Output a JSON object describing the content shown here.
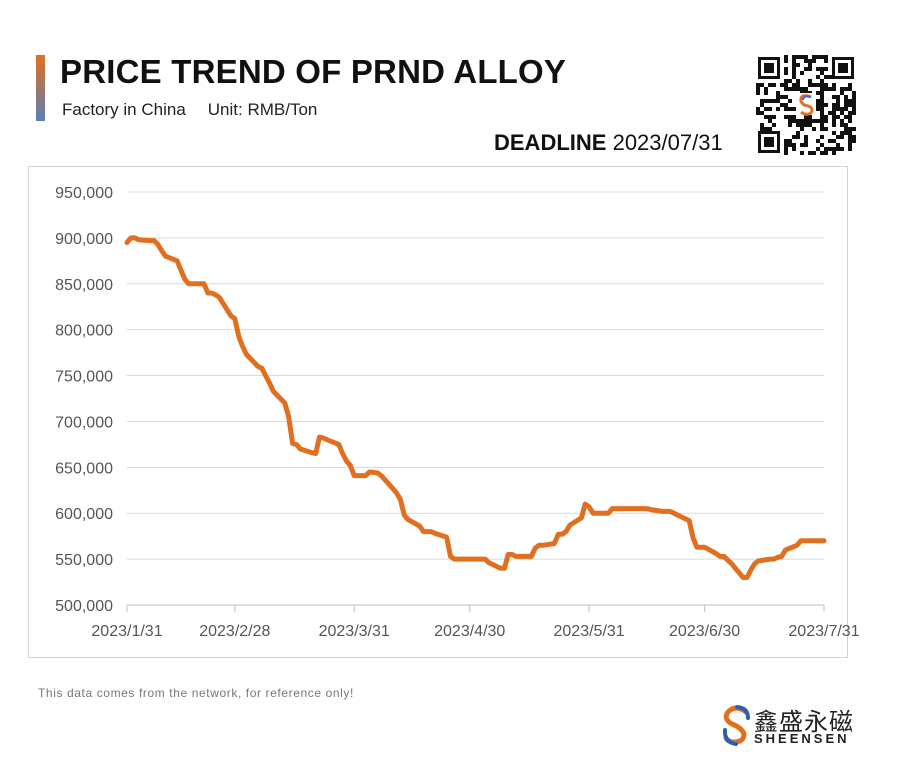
{
  "header": {
    "title": "PRICE TREND OF PRND ALLOY",
    "factory": "Factory in China",
    "unit": "Unit: RMB/Ton",
    "deadline_label": "DEADLINE",
    "deadline_date": "2023/07/31"
  },
  "footer": {
    "note": "This data comes from the network, for reference only!"
  },
  "logo": {
    "cn": "鑫盛永磁",
    "en": "SHEENSEN"
  },
  "colors": {
    "line": "#e07020",
    "accent_top": "#e07020",
    "accent_bottom": "#5b7fb5",
    "grid": "#d9d9d9"
  },
  "icons": [
    "qr-code-icon",
    "sheensen-s-logo-icon"
  ],
  "chart_data": {
    "type": "line",
    "title": "PRICE TREND OF PRND ALLOY",
    "xlabel": "",
    "ylabel": "",
    "ylim": [
      500000,
      950000
    ],
    "yticks": [
      "500,000",
      "550,000",
      "600,000",
      "650,000",
      "700,000",
      "750,000",
      "800,000",
      "850,000",
      "900,000",
      "950,000"
    ],
    "xlim": [
      "2023/1/31",
      "2023/7/31"
    ],
    "xticks": [
      "2023/1/31",
      "2023/2/28",
      "2023/3/31",
      "2023/4/30",
      "2023/5/31",
      "2023/6/30",
      "2023/7/31"
    ],
    "grid": true,
    "legend": "none",
    "series": [
      {
        "x": [
          "2023/1/31",
          "2023/2/1",
          "2023/2/2",
          "2023/2/3",
          "2023/2/6",
          "2023/2/7",
          "2023/2/8",
          "2023/2/9",
          "2023/2/10",
          "2023/2/13",
          "2023/2/14",
          "2023/2/15",
          "2023/2/16",
          "2023/2/17",
          "2023/2/20",
          "2023/2/21",
          "2023/2/22",
          "2023/2/23",
          "2023/2/24",
          "2023/2/27",
          "2023/2/28",
          "2023/3/1",
          "2023/3/2",
          "2023/3/3",
          "2023/3/6",
          "2023/3/7",
          "2023/3/8",
          "2023/3/9",
          "2023/3/10",
          "2023/3/13",
          "2023/3/14",
          "2023/3/15",
          "2023/3/16",
          "2023/3/17",
          "2023/3/20",
          "2023/3/21",
          "2023/3/22",
          "2023/3/23",
          "2023/3/24",
          "2023/3/27",
          "2023/3/28",
          "2023/3/29",
          "2023/3/30",
          "2023/3/31",
          "2023/4/3",
          "2023/4/4",
          "2023/4/6",
          "2023/4/7",
          "2023/4/10",
          "2023/4/11",
          "2023/4/12",
          "2023/4/13",
          "2023/4/14",
          "2023/4/17",
          "2023/4/18",
          "2023/4/19",
          "2023/4/20",
          "2023/4/21",
          "2023/4/24",
          "2023/4/25",
          "2023/4/26",
          "2023/4/27",
          "2023/4/28",
          "2023/5/4",
          "2023/5/5",
          "2023/5/8",
          "2023/5/9",
          "2023/5/10",
          "2023/5/11",
          "2023/5/12",
          "2023/5/15",
          "2023/5/16",
          "2023/5/17",
          "2023/5/18",
          "2023/5/19",
          "2023/5/22",
          "2023/5/23",
          "2023/5/24",
          "2023/5/25",
          "2023/5/26",
          "2023/5/29",
          "2023/5/30",
          "2023/5/31",
          "2023/6/1",
          "2023/6/2",
          "2023/6/5",
          "2023/6/6",
          "2023/6/7",
          "2023/6/8",
          "2023/6/9",
          "2023/6/12",
          "2023/6/13",
          "2023/6/14",
          "2023/6/15",
          "2023/6/16",
          "2023/6/19",
          "2023/6/20",
          "2023/6/21",
          "2023/6/26",
          "2023/6/27",
          "2023/6/28",
          "2023/6/29",
          "2023/6/30",
          "2023/7/3",
          "2023/7/4",
          "2023/7/5",
          "2023/7/6",
          "2023/7/7",
          "2023/7/10",
          "2023/7/11",
          "2023/7/12",
          "2023/7/13",
          "2023/7/14",
          "2023/7/17",
          "2023/7/18",
          "2023/7/19",
          "2023/7/20",
          "2023/7/21",
          "2023/7/24",
          "2023/7/25",
          "2023/7/26",
          "2023/7/27",
          "2023/7/28",
          "2023/7/31"
        ],
        "values": [
          895000,
          900000,
          900000,
          898000,
          897000,
          897000,
          893000,
          886000,
          880000,
          875000,
          865000,
          855000,
          850000,
          850000,
          850000,
          840000,
          840000,
          838000,
          835000,
          815000,
          812000,
          793000,
          782000,
          773000,
          760000,
          758000,
          750000,
          742000,
          733000,
          720000,
          705000,
          676000,
          675000,
          670000,
          666000,
          665000,
          683000,
          682000,
          680000,
          675000,
          665000,
          657000,
          652000,
          641000,
          641000,
          645000,
          644000,
          641000,
          627000,
          622000,
          615000,
          598000,
          593000,
          586000,
          580000,
          580000,
          580000,
          578000,
          574000,
          553000,
          550000,
          550000,
          550000,
          550000,
          546000,
          540000,
          540000,
          555000,
          555000,
          553000,
          553000,
          553000,
          562000,
          565000,
          565000,
          567000,
          577000,
          577000,
          580000,
          587000,
          595000,
          610000,
          607000,
          600000,
          600000,
          600000,
          605000,
          605000,
          605000,
          605000,
          605000,
          605000,
          605000,
          605000,
          604000,
          602000,
          602000,
          602000,
          592000,
          573000,
          563000,
          563000,
          563000,
          556000,
          553000,
          553000,
          549000,
          545000,
          530000,
          530000,
          538000,
          545000,
          548000,
          550000,
          550000,
          552000,
          553000,
          560000,
          565000,
          570000,
          570000,
          570000,
          570000,
          570000
        ]
      }
    ]
  }
}
